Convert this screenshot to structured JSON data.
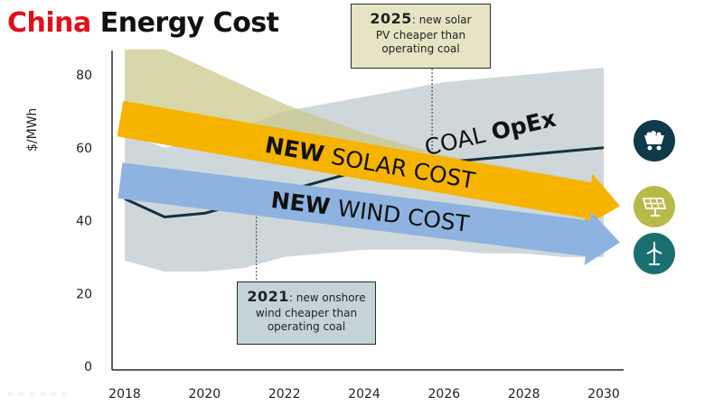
{
  "title": {
    "highlight": "China",
    "rest": "Energy Cost"
  },
  "chart_data": {
    "type": "area",
    "title": "China Energy Cost",
    "xlabel": "",
    "ylabel": "$/MWh",
    "x_range": [
      2018,
      2030
    ],
    "ylim": [
      0,
      85
    ],
    "xticks": [
      2018,
      2020,
      2022,
      2024,
      2026,
      2028,
      2030
    ],
    "yticks": [
      0,
      20,
      40,
      60,
      80
    ],
    "series": [
      {
        "name": "Coal OpEx range",
        "kind": "band",
        "color": "#c7d0d3",
        "x": [
          2018,
          2019,
          2020,
          2021,
          2022,
          2023,
          2024,
          2025,
          2026,
          2027,
          2028,
          2029,
          2030
        ],
        "low": [
          29,
          26,
          26,
          27,
          30,
          31,
          32,
          32,
          32,
          31,
          31,
          30,
          30
        ],
        "high": [
          64,
          60,
          62,
          66,
          70,
          72,
          74,
          76,
          78,
          79,
          80,
          81,
          82
        ]
      },
      {
        "name": "New solar cost range",
        "kind": "band",
        "color": "#c9c98e",
        "x": [
          2018,
          2019,
          2020,
          2021,
          2022,
          2023,
          2024,
          2025,
          2026,
          2027,
          2028,
          2029,
          2030
        ],
        "low": [
          63,
          61,
          59,
          57,
          55,
          54,
          52,
          50,
          48,
          46,
          45,
          43,
          42
        ],
        "high": [
          87,
          87,
          82,
          77,
          72,
          68,
          64,
          61,
          58,
          56,
          54,
          52,
          50
        ]
      },
      {
        "name": "Coal OpEx",
        "kind": "line",
        "color": "#14323f",
        "x": [
          2018,
          2019,
          2020,
          2021,
          2022,
          2023,
          2024,
          2025,
          2026,
          2027,
          2028,
          2029,
          2030
        ],
        "values": [
          46,
          41,
          42,
          45,
          48,
          51,
          54,
          55,
          56,
          57,
          58,
          59,
          60
        ]
      }
    ],
    "arrows": [
      {
        "name": "New solar cost",
        "label_bold": "NEW",
        "label_rest": "SOLAR COST",
        "color": "#f6b400",
        "from": [
          2018,
          68
        ],
        "to": [
          2030,
          44
        ]
      },
      {
        "name": "New wind cost",
        "label_bold": "NEW",
        "label_rest": "WIND COST",
        "color": "#8fb3e0",
        "from": [
          2018,
          51
        ],
        "to": [
          2030,
          34
        ]
      }
    ],
    "annotations": [
      {
        "id": "coal",
        "text_main": "COAL ",
        "text_bold": "OpEx",
        "x": 2027.2,
        "y": 62
      },
      {
        "id": "c2025",
        "year": "2025",
        "text1": ": new solar",
        "text2": "PV cheaper than",
        "text3": "operating coal",
        "x": 2025.7
      },
      {
        "id": "c2021",
        "year": "2021",
        "text1": ": new onshore",
        "text2": "wind cheaper than",
        "text3": "operating coal",
        "x": 2021.3
      }
    ],
    "legend": "icons-right"
  },
  "icons": {
    "coal": "coal-cart-icon",
    "solar": "solar-panel-icon",
    "wind": "wind-turbine-icon"
  },
  "colors": {
    "title_highlight": "#e0101a",
    "axis": "#2b2b2b",
    "coal_icon_bg": "#0f3a4a",
    "solar_icon_bg": "#b9b94a",
    "wind_icon_bg": "#1a7070"
  }
}
